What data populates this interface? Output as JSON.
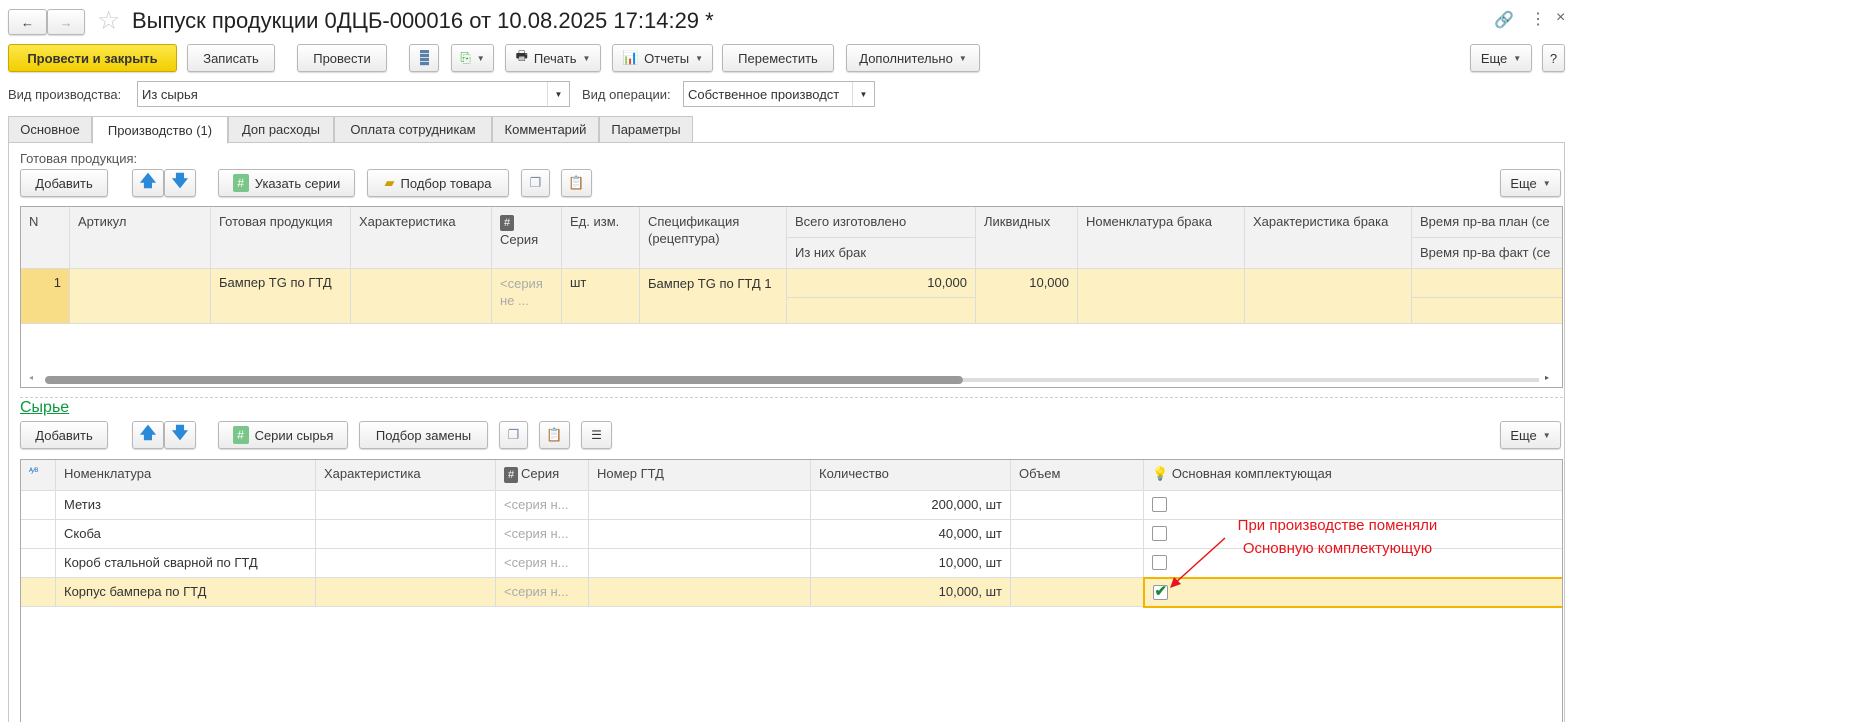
{
  "window": {
    "title": "Выпуск продукции 0ДЦБ-000016 от 10.08.2025 17:14:29 *",
    "back": "←",
    "forward": "→"
  },
  "toolbar": {
    "post_close": "Провести и закрыть",
    "save": "Записать",
    "post": "Провести",
    "print": "Печать",
    "reports": "Отчеты",
    "move": "Переместить",
    "more_actions": "Дополнительно",
    "more": "Еще",
    "help": "?"
  },
  "fields": {
    "prod_type_label": "Вид производства:",
    "prod_type_value": "Из сырья",
    "op_type_label": "Вид операции:",
    "op_type_value": "Собственное производст"
  },
  "tabs": [
    "Основное",
    "Производство (1)",
    "Доп расходы",
    "Оплата сотрудникам",
    "Комментарий",
    "Параметры"
  ],
  "finished": {
    "label": "Готовая продукция:",
    "add": "Добавить",
    "series": "Указать серии",
    "pick": "Подбор товара",
    "more": "Еще",
    "headers": {
      "n": "N",
      "article": "Артикул",
      "product": "Готовая продукция",
      "characteristic": "Характеристика",
      "series": "Серия",
      "unit": "Ед. изм.",
      "spec": "Спецификация (рецептура)",
      "total": "Всего изготовлено",
      "defect_of": "Из них брак",
      "liquid": "Ликвидных",
      "defect_nom": "Номенклатура брака",
      "defect_char": "Характеристика брака",
      "time_plan": "Время пр-ва план (се",
      "time_fact": "Время пр-ва факт (се"
    },
    "rows": [
      {
        "n": "1",
        "article": "",
        "product": "Бампер TG по ГТД",
        "characteristic": "",
        "series": "<серия не ...",
        "unit": "шт",
        "spec": "Бампер TG по ГТД 1",
        "total": "10,000",
        "defect_of": "",
        "liquid": "10,000"
      }
    ]
  },
  "raw": {
    "label": "Сырье",
    "add": "Добавить",
    "series": "Серии сырья",
    "replace": "Подбор замены",
    "more": "Еще",
    "headers": {
      "nomenclature": "Номенклатура",
      "characteristic": "Характеристика",
      "series": "Серия",
      "gtd": "Номер ГТД",
      "quantity": "Количество",
      "volume": "Объем",
      "main": "Основная комплектующая"
    },
    "rows": [
      {
        "nomenclature": "Метиз",
        "series": "<серия н...",
        "quantity": "200,000, шт",
        "main": false
      },
      {
        "nomenclature": "Скоба",
        "series": "<серия н...",
        "quantity": "40,000, шт",
        "main": false
      },
      {
        "nomenclature": "Короб стальной сварной по ГТД",
        "series": "<серия н...",
        "quantity": "10,000, шт",
        "main": false
      },
      {
        "nomenclature": "Корпус бампера по ГТД",
        "series": "<серия н...",
        "quantity": "10,000, шт",
        "main": true
      }
    ]
  },
  "annotation": {
    "line1": "При производстве поменяли",
    "line2": "Основную комплектующую",
    "color": "#e8141b"
  },
  "colors": {
    "accent": "#f3cf00",
    "link": "#0a9a3c",
    "highlight": "#fdf1c4"
  }
}
